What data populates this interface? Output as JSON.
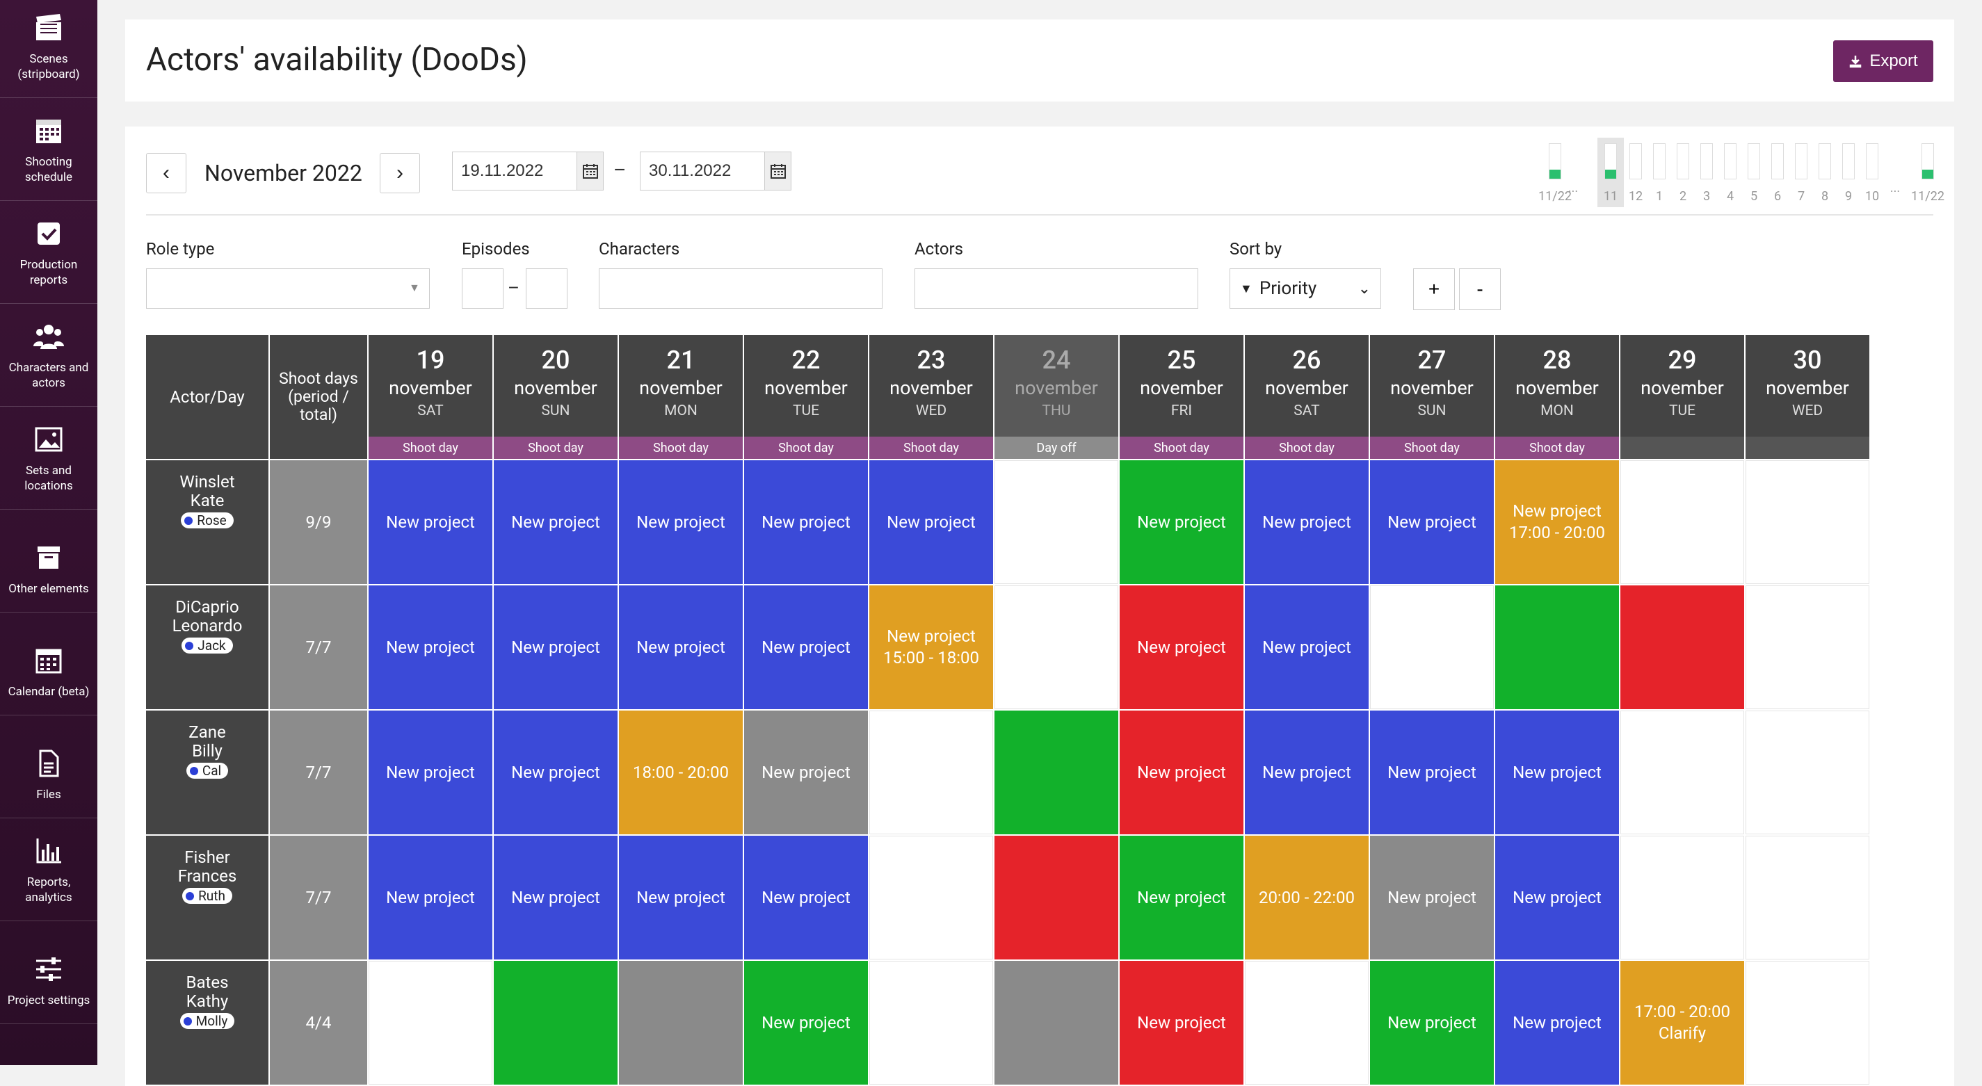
{
  "sidebar": {
    "items": [
      {
        "label": "Scenes\n(stripboard)",
        "icon": "clapperboard-icon"
      },
      {
        "label": "Shooting\nschedule",
        "icon": "calendar-grid-icon"
      },
      {
        "label": "Production\nreports",
        "icon": "checkbox-icon"
      },
      {
        "label": "Characters and\nactors",
        "icon": "people-icon"
      },
      {
        "label": "Sets and\nlocations",
        "icon": "image-icon"
      },
      {
        "label": "Other elements",
        "icon": "box-icon"
      },
      {
        "label": "Calendar (beta)",
        "icon": "calendar-icon"
      },
      {
        "label": "Files",
        "icon": "file-icon"
      },
      {
        "label": "Reports,\nanalytics",
        "icon": "bar-chart-icon"
      },
      {
        "label": "Project settings",
        "icon": "sliders-icon"
      },
      {
        "label": "",
        "icon": "team-icon"
      }
    ]
  },
  "header": {
    "title": "Actors' availability (DooDs)",
    "export_label": "Export"
  },
  "toolbar": {
    "prev": "‹",
    "next": "›",
    "month": "November 2022",
    "date_from": "19.11.2022",
    "date_to": "30.11.2022",
    "dash": "–"
  },
  "mini_chart": {
    "labels": [
      "11/22",
      "11",
      "12",
      "1",
      "2",
      "3",
      "4",
      "5",
      "6",
      "7",
      "8",
      "9",
      "10",
      "11/22"
    ],
    "ellipsis": "...",
    "levels": [
      0.25,
      0.25,
      0,
      0,
      0,
      0,
      0,
      0,
      0,
      0,
      0,
      0,
      0,
      0.25
    ]
  },
  "filters": {
    "role_type": "Role type",
    "episodes": "Episodes",
    "episodes_dash": "–",
    "characters": "Characters",
    "actors": "Actors",
    "sort_by": "Sort by",
    "sort_value": "Priority",
    "plus": "+",
    "minus": "-"
  },
  "grid": {
    "corner": "Actor/Day",
    "shoot_days_header": "Shoot days\n(period /\ntotal)",
    "days": [
      {
        "num": "19",
        "month": "november",
        "dow": "SAT",
        "status": "Shoot day",
        "type": "shoot"
      },
      {
        "num": "20",
        "month": "november",
        "dow": "SUN",
        "status": "Shoot day",
        "type": "shoot"
      },
      {
        "num": "21",
        "month": "november",
        "dow": "MON",
        "status": "Shoot day",
        "type": "shoot"
      },
      {
        "num": "22",
        "month": "november",
        "dow": "TUE",
        "status": "Shoot day",
        "type": "shoot"
      },
      {
        "num": "23",
        "month": "november",
        "dow": "WED",
        "status": "Shoot day",
        "type": "shoot"
      },
      {
        "num": "24",
        "month": "november",
        "dow": "THU",
        "status": "Day off",
        "type": "off"
      },
      {
        "num": "25",
        "month": "november",
        "dow": "FRI",
        "status": "Shoot day",
        "type": "shoot"
      },
      {
        "num": "26",
        "month": "november",
        "dow": "SAT",
        "status": "Shoot day",
        "type": "shoot"
      },
      {
        "num": "27",
        "month": "november",
        "dow": "SUN",
        "status": "Shoot day",
        "type": "shoot"
      },
      {
        "num": "28",
        "month": "november",
        "dow": "MON",
        "status": "Shoot day",
        "type": "shoot"
      },
      {
        "num": "29",
        "month": "november",
        "dow": "TUE",
        "status": "",
        "type": "none"
      },
      {
        "num": "30",
        "month": "november",
        "dow": "WED",
        "status": "",
        "type": "none"
      }
    ],
    "rows": [
      {
        "name": "Winslet\nKate",
        "character": "Rose",
        "shoot_days": "9/9",
        "cells": [
          {
            "c": "blue",
            "t": "New project"
          },
          {
            "c": "blue",
            "t": "New project"
          },
          {
            "c": "blue",
            "t": "New project"
          },
          {
            "c": "blue",
            "t": "New project"
          },
          {
            "c": "blue",
            "t": "New project"
          },
          {
            "c": "white",
            "t": ""
          },
          {
            "c": "green",
            "t": "New project"
          },
          {
            "c": "blue",
            "t": "New project"
          },
          {
            "c": "blue",
            "t": "New project"
          },
          {
            "c": "orange",
            "t": "New project\n17:00 - 20:00"
          },
          {
            "c": "white",
            "t": ""
          },
          {
            "c": "white",
            "t": ""
          }
        ]
      },
      {
        "name": "DiCaprio\nLeonardo",
        "character": "Jack",
        "shoot_days": "7/7",
        "cells": [
          {
            "c": "blue",
            "t": "New project"
          },
          {
            "c": "blue",
            "t": "New project"
          },
          {
            "c": "blue",
            "t": "New project"
          },
          {
            "c": "blue",
            "t": "New project"
          },
          {
            "c": "orange",
            "t": "New project\n15:00 - 18:00"
          },
          {
            "c": "white",
            "t": ""
          },
          {
            "c": "red",
            "t": "New project"
          },
          {
            "c": "blue",
            "t": "New project"
          },
          {
            "c": "white",
            "t": ""
          },
          {
            "c": "green",
            "t": ""
          },
          {
            "c": "red",
            "t": ""
          },
          {
            "c": "white",
            "t": ""
          }
        ]
      },
      {
        "name": "Zane\nBilly",
        "character": "Cal",
        "shoot_days": "7/7",
        "cells": [
          {
            "c": "blue",
            "t": "New project"
          },
          {
            "c": "blue",
            "t": "New project"
          },
          {
            "c": "orange",
            "t": "18:00 - 20:00"
          },
          {
            "c": "gray",
            "t": "New project"
          },
          {
            "c": "white",
            "t": ""
          },
          {
            "c": "green",
            "t": ""
          },
          {
            "c": "red",
            "t": "New project"
          },
          {
            "c": "blue",
            "t": "New project"
          },
          {
            "c": "blue",
            "t": "New project"
          },
          {
            "c": "blue",
            "t": "New project"
          },
          {
            "c": "white",
            "t": ""
          },
          {
            "c": "white",
            "t": ""
          }
        ]
      },
      {
        "name": "Fisher\nFrances",
        "character": "Ruth",
        "shoot_days": "7/7",
        "cells": [
          {
            "c": "blue",
            "t": "New project"
          },
          {
            "c": "blue",
            "t": "New project"
          },
          {
            "c": "blue",
            "t": "New project"
          },
          {
            "c": "blue",
            "t": "New project"
          },
          {
            "c": "white",
            "t": ""
          },
          {
            "c": "red",
            "t": ""
          },
          {
            "c": "green",
            "t": "New project"
          },
          {
            "c": "orange",
            "t": "20:00 - 22:00"
          },
          {
            "c": "gray",
            "t": "New project"
          },
          {
            "c": "blue",
            "t": "New project"
          },
          {
            "c": "white",
            "t": ""
          },
          {
            "c": "white",
            "t": ""
          }
        ]
      },
      {
        "name": "Bates\nKathy",
        "character": "Molly",
        "shoot_days": "4/4",
        "cells": [
          {
            "c": "white",
            "t": ""
          },
          {
            "c": "green",
            "t": ""
          },
          {
            "c": "gray",
            "t": ""
          },
          {
            "c": "green",
            "t": "New project"
          },
          {
            "c": "white",
            "t": ""
          },
          {
            "c": "gray",
            "t": ""
          },
          {
            "c": "red",
            "t": "New project"
          },
          {
            "c": "white",
            "t": ""
          },
          {
            "c": "green",
            "t": "New project"
          },
          {
            "c": "blue",
            "t": "New project"
          },
          {
            "c": "orange",
            "t": "17:00 - 20:00\nClarify"
          },
          {
            "c": "white",
            "t": ""
          }
        ]
      }
    ]
  },
  "colors": {
    "accent": "#6e2663",
    "blue": "#3b4ad8",
    "green": "#12b12b",
    "red": "#e5232a",
    "orange": "#e09f22",
    "gray": "#8a8a8a"
  }
}
